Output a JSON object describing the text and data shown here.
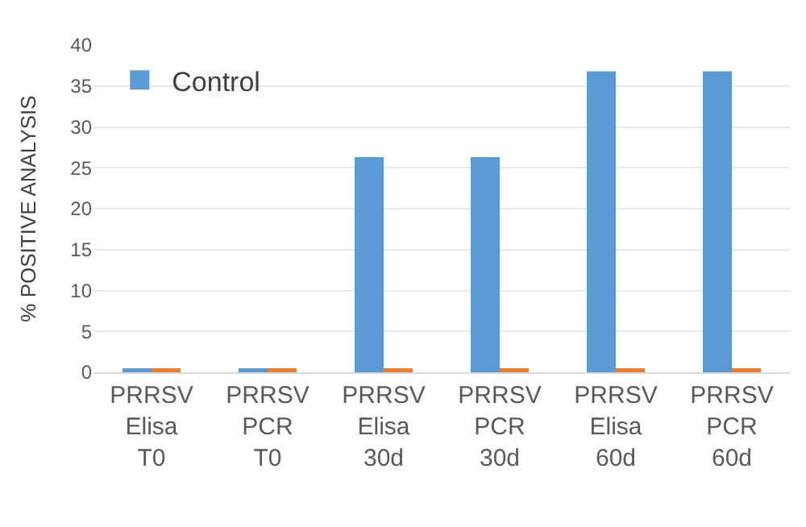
{
  "chart_data": {
    "type": "bar",
    "ylabel": "% POSITIVE ANALYSIS",
    "categories": [
      "PRRSV\nElisa\nT0",
      "PRRSV\nPCR\nT0",
      "PRRSV\nElisa\n30d",
      "PRRSV\nPCR\n30d",
      "PRRSV\nElisa\n60d",
      "PRRSV\nPCR\n60d"
    ],
    "series": [
      {
        "name": "Control",
        "color": "#5b9bd5",
        "values": [
          0.5,
          0.5,
          26.3,
          26.3,
          36.8,
          36.8
        ]
      },
      {
        "color": "#ed7d31",
        "values": [
          0.5,
          0.5,
          0.5,
          0.5,
          0.5,
          0.5
        ]
      }
    ],
    "ylim": [
      0,
      40
    ],
    "yticks": [
      0,
      5,
      10,
      15,
      20,
      25,
      30,
      35,
      40
    ],
    "grid": "y",
    "legend": "top left"
  }
}
